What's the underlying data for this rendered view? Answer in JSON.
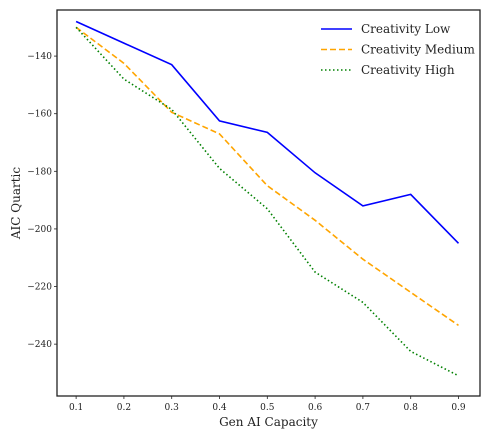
{
  "chart_data": {
    "type": "line",
    "title": "",
    "xlabel": "Gen AI Capacity",
    "ylabel": "AIC Quartic",
    "x": [
      0.1,
      0.2,
      0.3,
      0.4,
      0.5,
      0.6,
      0.7,
      0.8,
      0.9
    ],
    "xticks": [
      "0.1",
      "0.2",
      "0.3",
      "0.4",
      "0.5",
      "0.6",
      "0.7",
      "0.8",
      "0.9"
    ],
    "yticks": [
      "−140",
      "−160",
      "−180",
      "−200",
      "−220",
      "−240"
    ],
    "ytick_values": [
      -140,
      -160,
      -180,
      -200,
      -220,
      -240
    ],
    "xlim": [
      0.06,
      0.945
    ],
    "ylim": [
      -258,
      -124
    ],
    "grid": false,
    "legend_position": "top-right",
    "series": [
      {
        "name": "Creativity Low",
        "color": "#0000ff",
        "dash": "solid",
        "values": [
          -128,
          -135.5,
          -143,
          -162.5,
          -166.5,
          -180.5,
          -192,
          -188,
          -205
        ]
      },
      {
        "name": "Creativity Medium",
        "color": "#ffa500",
        "dash": "dashed",
        "values": [
          -130,
          -142.5,
          -159.5,
          -167,
          -185,
          -197,
          -210.5,
          -222,
          -233.5
        ]
      },
      {
        "name": "Creativity High",
        "color": "#008000",
        "dash": "dotted",
        "values": [
          -130,
          -148,
          -158.5,
          -179,
          -193,
          -215,
          -225.5,
          -242.5,
          -251
        ]
      }
    ]
  }
}
